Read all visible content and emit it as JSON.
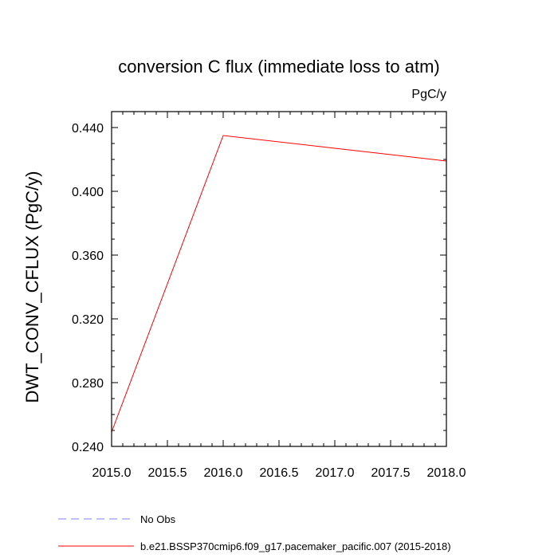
{
  "chart_data": {
    "type": "line",
    "title": "conversion C flux (immediate loss to atm)",
    "units": "PgC/y",
    "xlabel": "",
    "ylabel": "DWT_CONV_CFLUX  (PgC/y)",
    "xlim": [
      2015.0,
      2018.0
    ],
    "ylim": [
      0.24,
      0.45
    ],
    "x_ticks": [
      "2015.0",
      "2015.5",
      "2016.0",
      "2016.5",
      "2017.0",
      "2017.5",
      "2018.0"
    ],
    "y_ticks": [
      "0.240",
      "0.280",
      "0.320",
      "0.360",
      "0.400",
      "0.440"
    ],
    "grid": false,
    "legend_position": "bottom",
    "series": [
      {
        "name": "No Obs",
        "color": "#8080ff",
        "style": "dashed",
        "x": [],
        "y": []
      },
      {
        "name": "b.e21.BSSP370cmip6.f09_g17.pacemaker_pacific.007 (2015-2018)",
        "color": "#ff0000",
        "style": "solid",
        "x": [
          2015.0,
          2016.0,
          2017.0,
          2018.0
        ],
        "y": [
          0.249,
          0.435,
          0.427,
          0.419
        ]
      }
    ]
  }
}
